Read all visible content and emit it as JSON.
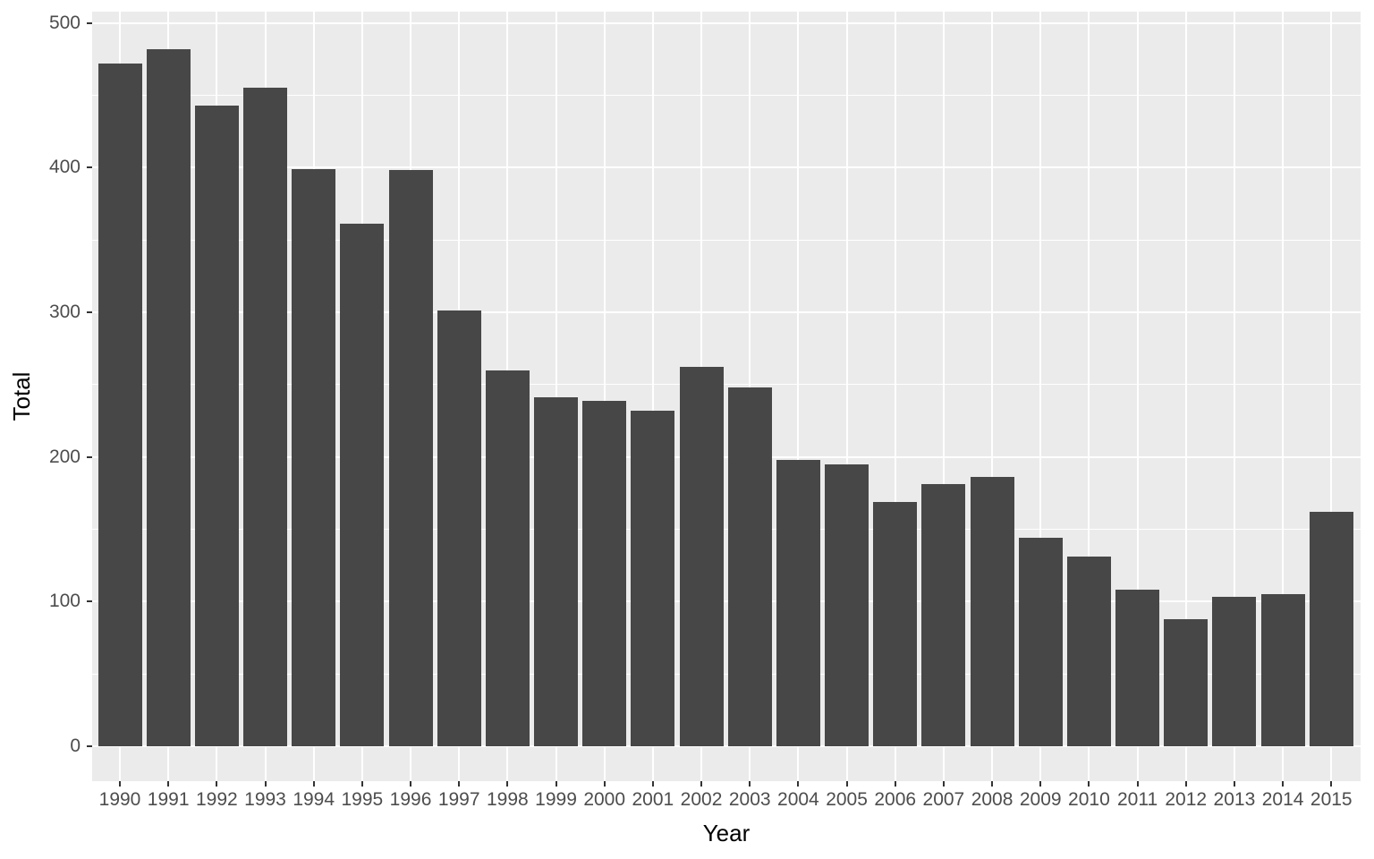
{
  "chart_data": {
    "type": "bar",
    "title": "",
    "xlabel": "Year",
    "ylabel": "Total",
    "categories": [
      "1990",
      "1991",
      "1992",
      "1993",
      "1994",
      "1995",
      "1996",
      "1997",
      "1998",
      "1999",
      "2000",
      "2001",
      "2002",
      "2003",
      "2004",
      "2005",
      "2006",
      "2007",
      "2008",
      "2009",
      "2010",
      "2011",
      "2012",
      "2013",
      "2014",
      "2015"
    ],
    "values": [
      472,
      482,
      443,
      455,
      399,
      361,
      398,
      301,
      260,
      241,
      239,
      232,
      262,
      248,
      198,
      195,
      169,
      181,
      186,
      144,
      131,
      108,
      88,
      103,
      105,
      162
    ],
    "y_ticks": [
      0,
      100,
      200,
      300,
      400,
      500
    ],
    "y_tick_labels": [
      "0",
      "100",
      "200",
      "300",
      "400",
      "500"
    ],
    "y_minor_ticks": [
      50,
      150,
      250,
      350,
      450
    ],
    "ylim": [
      0,
      500
    ],
    "grid": true,
    "legend": "none",
    "colors": {
      "bar_fill": "#474747",
      "panel_background": "#ebebeb",
      "gridline": "#ffffff",
      "axis_text": "#4d4d4d",
      "axis_title": "#000000",
      "tick_mark": "#333333",
      "figure_background": "#ffffff"
    }
  }
}
